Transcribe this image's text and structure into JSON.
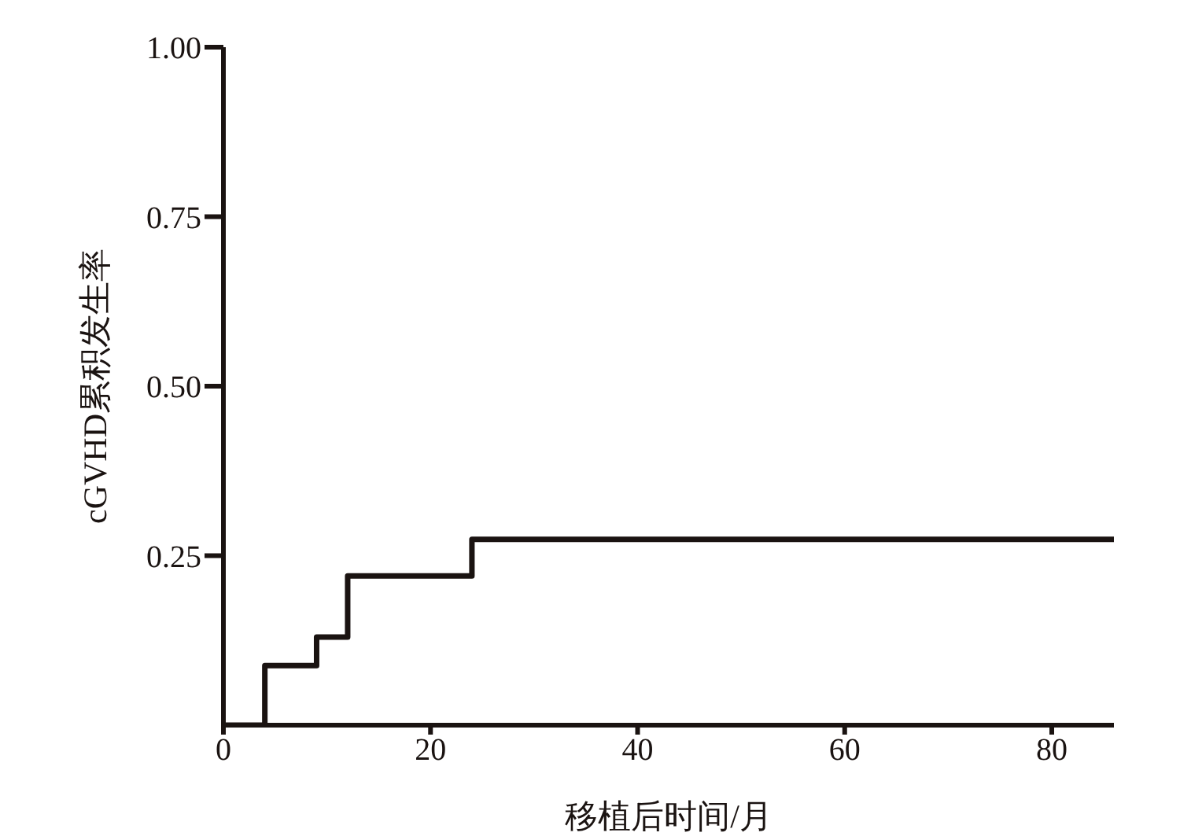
{
  "chart_data": {
    "type": "step",
    "xlabel": "移植后时间/月",
    "ylabel": "cGVHD累积发生率",
    "x": [
      0,
      4,
      9,
      12,
      24,
      86
    ],
    "series": [
      {
        "color": "#1a1311",
        "values": [
          0,
          0.088,
          0.13,
          0.22,
          0.274,
          0.274
        ]
      }
    ],
    "xlim": [
      0,
      86
    ],
    "xticks": [
      0,
      20,
      40,
      60,
      80
    ],
    "ylim": [
      0,
      1
    ],
    "yticks": [
      {
        "value": 0.25,
        "label": "0.25"
      },
      {
        "value": 0.5,
        "label": "0.50"
      },
      {
        "value": 0.75,
        "label": "0.75"
      },
      {
        "value": 1,
        "label": "1.00"
      }
    ],
    "marker": "none",
    "line_style": "solid"
  }
}
